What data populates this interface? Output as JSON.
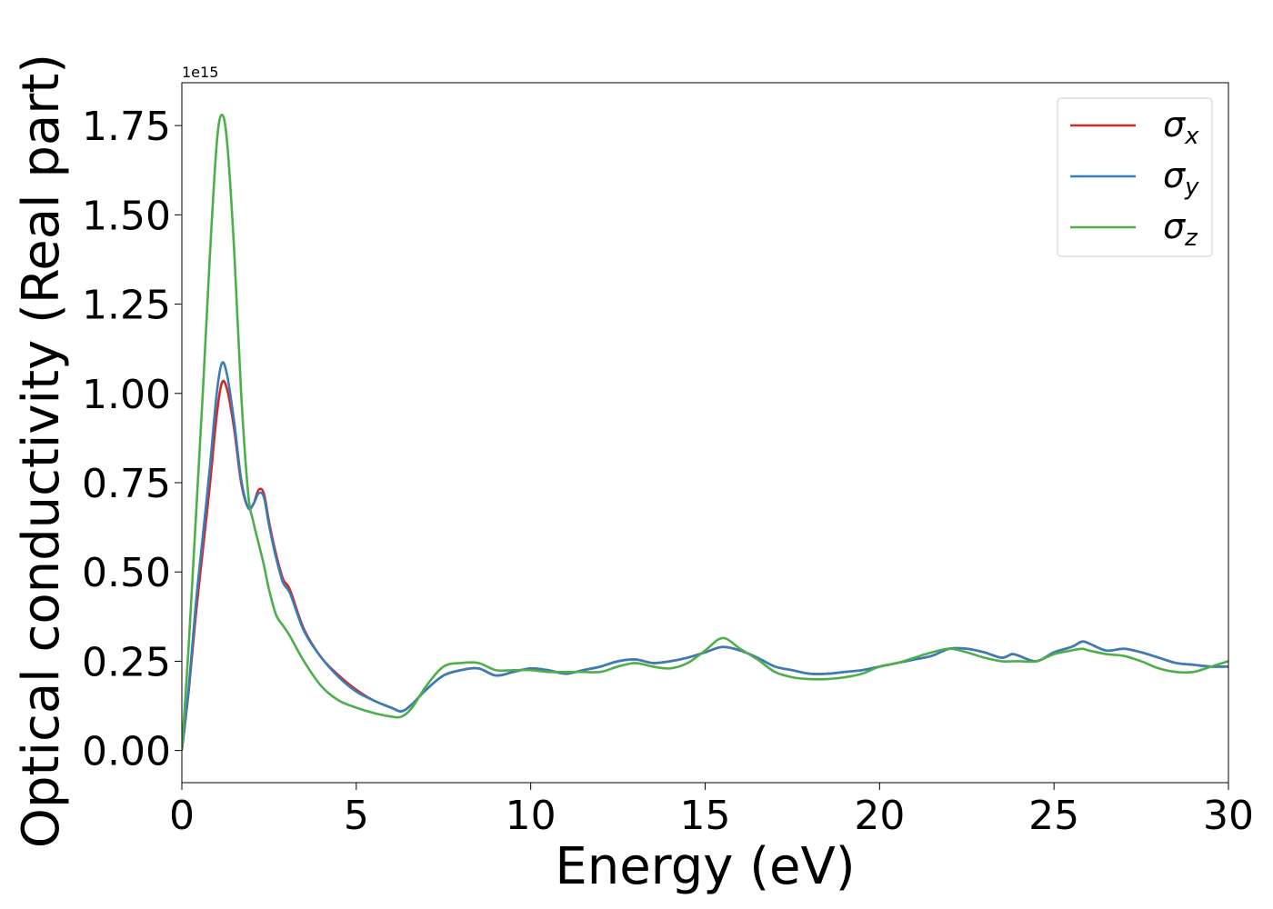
{
  "chart_data": {
    "type": "line",
    "title": "",
    "xlabel": "Energy (eV)",
    "ylabel": "Optical conductivity (Real part)",
    "y_offset_label": "1e15",
    "xlim": [
      0,
      30
    ],
    "ylim": [
      -0.09,
      1.87
    ],
    "x_ticks": [
      0,
      5,
      10,
      15,
      20,
      25,
      30
    ],
    "x_tick_labels": [
      "0",
      "5",
      "10",
      "15",
      "20",
      "25",
      "30"
    ],
    "y_ticks": [
      0,
      0.25,
      0.5,
      0.75,
      1.0,
      1.25,
      1.5,
      1.75
    ],
    "y_tick_labels": [
      "0.00",
      "0.25",
      "0.50",
      "0.75",
      "1.00",
      "1.25",
      "1.50",
      "1.75"
    ],
    "grid": false,
    "legend_position": "top-right",
    "series": [
      {
        "name": "σx",
        "symbol": "σ",
        "subscript": "x",
        "color": "#d62728",
        "x": [
          0,
          0.2,
          0.4,
          0.6,
          0.8,
          1.0,
          1.15,
          1.3,
          1.5,
          1.7,
          1.9,
          2.05,
          2.2,
          2.35,
          2.5,
          2.7,
          2.9,
          3.1,
          3.5,
          4.0,
          4.5,
          5.0,
          5.5,
          6.0,
          6.3,
          6.6,
          7.0,
          7.5,
          8.0,
          8.5,
          9.0,
          9.5,
          10.0,
          10.5,
          11.0,
          11.5,
          12.0,
          12.5,
          13.0,
          13.5,
          14.0,
          14.5,
          15.0,
          15.5,
          16.0,
          16.5,
          17.0,
          17.5,
          18.0,
          18.5,
          19.0,
          19.5,
          20.0,
          20.5,
          21.0,
          21.5,
          22.0,
          22.5,
          23.0,
          23.5,
          23.8,
          24.0,
          24.5,
          25.0,
          25.5,
          25.8,
          26.0,
          26.5,
          27.0,
          27.5,
          28.0,
          28.5,
          29.0,
          29.5,
          30.0
        ],
        "values": [
          0.0,
          0.17,
          0.38,
          0.56,
          0.74,
          0.94,
          1.03,
          1.01,
          0.9,
          0.75,
          0.68,
          0.69,
          0.73,
          0.72,
          0.64,
          0.55,
          0.48,
          0.45,
          0.34,
          0.26,
          0.21,
          0.17,
          0.14,
          0.12,
          0.11,
          0.13,
          0.17,
          0.21,
          0.225,
          0.23,
          0.21,
          0.22,
          0.23,
          0.225,
          0.215,
          0.225,
          0.235,
          0.25,
          0.255,
          0.245,
          0.25,
          0.26,
          0.275,
          0.29,
          0.28,
          0.26,
          0.235,
          0.225,
          0.215,
          0.215,
          0.22,
          0.225,
          0.235,
          0.245,
          0.255,
          0.265,
          0.285,
          0.285,
          0.275,
          0.26,
          0.27,
          0.265,
          0.25,
          0.275,
          0.29,
          0.305,
          0.3,
          0.28,
          0.285,
          0.275,
          0.26,
          0.245,
          0.24,
          0.235,
          0.235
        ]
      },
      {
        "name": "σy",
        "symbol": "σ",
        "subscript": "y",
        "color": "#377eb8",
        "x": [
          0,
          0.2,
          0.4,
          0.6,
          0.8,
          1.0,
          1.15,
          1.3,
          1.5,
          1.7,
          1.9,
          2.05,
          2.2,
          2.35,
          2.5,
          2.7,
          2.9,
          3.1,
          3.5,
          4.0,
          4.5,
          5.0,
          5.5,
          6.0,
          6.3,
          6.6,
          7.0,
          7.5,
          8.0,
          8.5,
          9.0,
          9.5,
          10.0,
          10.5,
          11.0,
          11.5,
          12.0,
          12.5,
          13.0,
          13.5,
          14.0,
          14.5,
          15.0,
          15.5,
          16.0,
          16.5,
          17.0,
          17.5,
          18.0,
          18.5,
          19.0,
          19.5,
          20.0,
          20.5,
          21.0,
          21.5,
          22.0,
          22.5,
          23.0,
          23.5,
          23.8,
          24.0,
          24.5,
          25.0,
          25.5,
          25.8,
          26.0,
          26.5,
          27.0,
          27.5,
          28.0,
          28.5,
          29.0,
          29.5,
          30.0
        ],
        "values": [
          0.0,
          0.18,
          0.41,
          0.6,
          0.79,
          1.0,
          1.085,
          1.05,
          0.92,
          0.76,
          0.68,
          0.69,
          0.72,
          0.71,
          0.63,
          0.54,
          0.47,
          0.44,
          0.335,
          0.26,
          0.205,
          0.165,
          0.14,
          0.12,
          0.11,
          0.13,
          0.17,
          0.21,
          0.225,
          0.23,
          0.21,
          0.22,
          0.23,
          0.225,
          0.215,
          0.225,
          0.235,
          0.25,
          0.255,
          0.245,
          0.25,
          0.26,
          0.275,
          0.29,
          0.28,
          0.26,
          0.235,
          0.225,
          0.215,
          0.215,
          0.22,
          0.225,
          0.235,
          0.245,
          0.255,
          0.265,
          0.285,
          0.285,
          0.275,
          0.26,
          0.27,
          0.265,
          0.25,
          0.275,
          0.29,
          0.305,
          0.3,
          0.28,
          0.285,
          0.275,
          0.26,
          0.245,
          0.24,
          0.235,
          0.235
        ]
      },
      {
        "name": "σz",
        "symbol": "σ",
        "subscript": "z",
        "color": "#4daf4a",
        "x": [
          0,
          0.2,
          0.4,
          0.6,
          0.8,
          1.0,
          1.15,
          1.3,
          1.5,
          1.7,
          1.9,
          2.05,
          2.2,
          2.35,
          2.5,
          2.7,
          2.9,
          3.1,
          3.5,
          4.0,
          4.5,
          5.0,
          5.5,
          6.0,
          6.3,
          6.6,
          7.0,
          7.5,
          8.0,
          8.5,
          9.0,
          9.5,
          10.0,
          10.5,
          11.0,
          11.5,
          12.0,
          12.5,
          13.0,
          13.5,
          14.0,
          14.5,
          15.0,
          15.5,
          16.0,
          16.5,
          17.0,
          17.5,
          18.0,
          18.5,
          19.0,
          19.5,
          20.0,
          20.5,
          21.0,
          21.5,
          22.0,
          22.5,
          23.0,
          23.5,
          23.8,
          24.0,
          24.5,
          25.0,
          25.5,
          25.8,
          26.0,
          26.5,
          27.0,
          27.5,
          28.0,
          28.5,
          29.0,
          29.5,
          30.0
        ],
        "values": [
          0.0,
          0.3,
          0.65,
          1.0,
          1.38,
          1.7,
          1.78,
          1.7,
          1.4,
          1.0,
          0.72,
          0.64,
          0.58,
          0.52,
          0.45,
          0.38,
          0.35,
          0.32,
          0.25,
          0.18,
          0.14,
          0.12,
          0.105,
          0.095,
          0.095,
          0.12,
          0.18,
          0.235,
          0.245,
          0.245,
          0.225,
          0.225,
          0.225,
          0.22,
          0.22,
          0.22,
          0.22,
          0.235,
          0.245,
          0.235,
          0.23,
          0.245,
          0.28,
          0.315,
          0.285,
          0.255,
          0.22,
          0.205,
          0.2,
          0.2,
          0.205,
          0.215,
          0.235,
          0.245,
          0.26,
          0.275,
          0.285,
          0.275,
          0.26,
          0.25,
          0.25,
          0.25,
          0.25,
          0.27,
          0.28,
          0.285,
          0.28,
          0.27,
          0.265,
          0.25,
          0.23,
          0.22,
          0.22,
          0.235,
          0.25
        ]
      }
    ]
  }
}
